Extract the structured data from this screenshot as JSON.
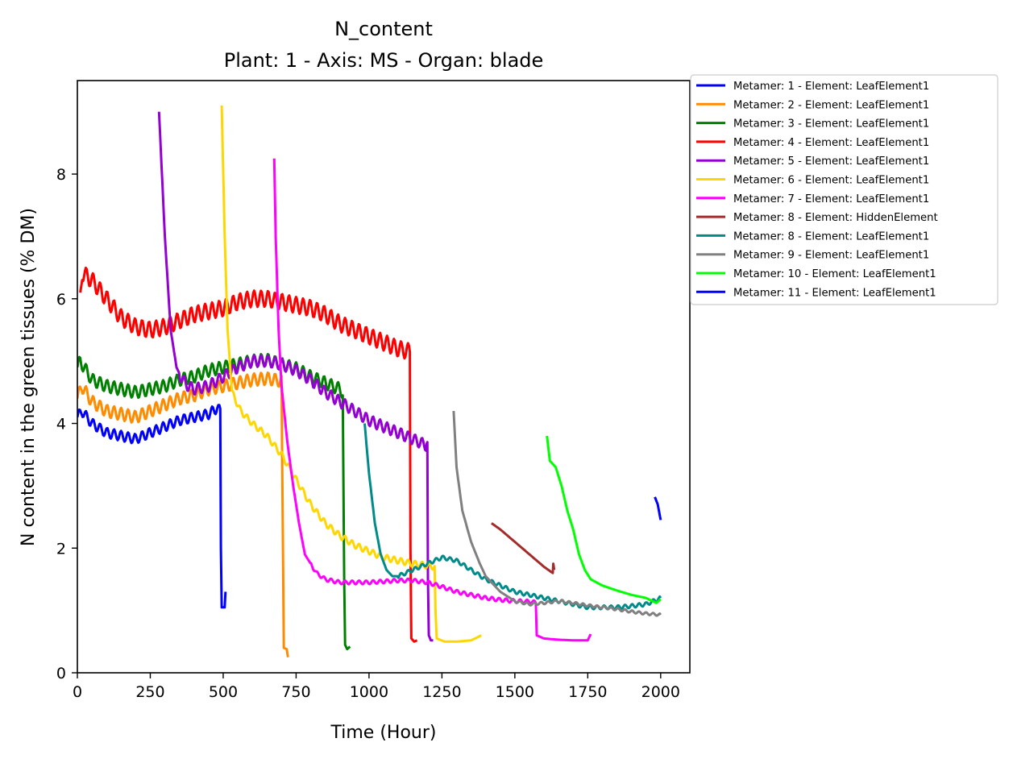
{
  "chart_data": {
    "type": "line",
    "title": "N_content",
    "subtitle": "Plant: 1 - Axis: MS - Organ: blade",
    "xlabel": "Time (Hour)",
    "ylabel": "N content in the green tissues (% DM)",
    "xlim": [
      0,
      2100
    ],
    "ylim": [
      0,
      9.5
    ],
    "xticks": [
      0,
      250,
      500,
      750,
      1000,
      1250,
      1500,
      1750,
      2000
    ],
    "yticks": [
      0,
      2,
      4,
      6,
      8
    ],
    "grid": false,
    "legend_position": "outside top-right",
    "series": [
      {
        "name": "Metamer: 1 - Element: LeafElement1",
        "color": "#0000ff",
        "points": [
          [
            0,
            4.1
          ],
          [
            15,
            4.2
          ],
          [
            50,
            4.0
          ],
          [
            100,
            3.85
          ],
          [
            150,
            3.8
          ],
          [
            200,
            3.75
          ],
          [
            250,
            3.85
          ],
          [
            300,
            3.95
          ],
          [
            350,
            4.05
          ],
          [
            400,
            4.1
          ],
          [
            450,
            4.15
          ],
          [
            480,
            4.25
          ],
          [
            490,
            4.2
          ],
          [
            492,
            2.0
          ],
          [
            495,
            1.05
          ],
          [
            505,
            1.05
          ],
          [
            508,
            1.3
          ]
        ],
        "wiggle": 0.08,
        "wiggle_range": [
          0,
          490
        ]
      },
      {
        "name": "Metamer: 2 - Element: LeafElement1",
        "color": "#ff8c00",
        "points": [
          [
            0,
            4.4
          ],
          [
            15,
            4.6
          ],
          [
            50,
            4.35
          ],
          [
            100,
            4.2
          ],
          [
            150,
            4.15
          ],
          [
            200,
            4.1
          ],
          [
            250,
            4.2
          ],
          [
            300,
            4.3
          ],
          [
            350,
            4.4
          ],
          [
            400,
            4.45
          ],
          [
            450,
            4.55
          ],
          [
            500,
            4.6
          ],
          [
            550,
            4.65
          ],
          [
            600,
            4.7
          ],
          [
            650,
            4.72
          ],
          [
            700,
            4.68
          ],
          [
            705,
            2.0
          ],
          [
            708,
            0.4
          ],
          [
            718,
            0.38
          ],
          [
            722,
            0.25
          ]
        ],
        "wiggle": 0.1,
        "wiggle_range": [
          0,
          700
        ]
      },
      {
        "name": "Metamer: 3 - Element: LeafElement1",
        "color": "#008000",
        "points": [
          [
            0,
            4.9
          ],
          [
            10,
            5.0
          ],
          [
            50,
            4.7
          ],
          [
            100,
            4.6
          ],
          [
            150,
            4.55
          ],
          [
            200,
            4.5
          ],
          [
            250,
            4.55
          ],
          [
            300,
            4.6
          ],
          [
            350,
            4.7
          ],
          [
            400,
            4.75
          ],
          [
            450,
            4.85
          ],
          [
            500,
            4.9
          ],
          [
            550,
            4.95
          ],
          [
            600,
            5.0
          ],
          [
            650,
            5.02
          ],
          [
            700,
            4.95
          ],
          [
            750,
            4.88
          ],
          [
            800,
            4.75
          ],
          [
            850,
            4.65
          ],
          [
            900,
            4.55
          ],
          [
            910,
            4.5
          ],
          [
            915,
            1.5
          ],
          [
            918,
            0.45
          ],
          [
            925,
            0.38
          ],
          [
            935,
            0.42
          ]
        ],
        "wiggle": 0.1,
        "wiggle_range": [
          0,
          910
        ]
      },
      {
        "name": "Metamer: 4 - Element: LeafElement1",
        "color": "#ff0000",
        "points": [
          [
            10,
            6.1
          ],
          [
            20,
            6.4
          ],
          [
            50,
            6.3
          ],
          [
            100,
            6.0
          ],
          [
            150,
            5.7
          ],
          [
            200,
            5.55
          ],
          [
            250,
            5.5
          ],
          [
            300,
            5.55
          ],
          [
            350,
            5.65
          ],
          [
            400,
            5.75
          ],
          [
            450,
            5.8
          ],
          [
            500,
            5.85
          ],
          [
            550,
            5.95
          ],
          [
            600,
            6.0
          ],
          [
            650,
            6.0
          ],
          [
            700,
            5.95
          ],
          [
            750,
            5.9
          ],
          [
            800,
            5.85
          ],
          [
            850,
            5.75
          ],
          [
            900,
            5.6
          ],
          [
            950,
            5.5
          ],
          [
            1000,
            5.4
          ],
          [
            1050,
            5.3
          ],
          [
            1100,
            5.2
          ],
          [
            1140,
            5.15
          ],
          [
            1142,
            2.0
          ],
          [
            1145,
            0.55
          ],
          [
            1155,
            0.5
          ],
          [
            1165,
            0.52
          ]
        ],
        "wiggle": 0.13,
        "wiggle_range": [
          20,
          1140
        ]
      },
      {
        "name": "Metamer: 5 - Element: LeafElement1",
        "color": "#9400d3",
        "points": [
          [
            280,
            9.0
          ],
          [
            300,
            7.0
          ],
          [
            320,
            5.5
          ],
          [
            340,
            4.9
          ],
          [
            360,
            4.7
          ],
          [
            380,
            4.6
          ],
          [
            400,
            4.55
          ],
          [
            450,
            4.6
          ],
          [
            500,
            4.75
          ],
          [
            550,
            4.9
          ],
          [
            600,
            5.0
          ],
          [
            650,
            5.0
          ],
          [
            700,
            4.95
          ],
          [
            750,
            4.85
          ],
          [
            800,
            4.7
          ],
          [
            850,
            4.5
          ],
          [
            900,
            4.35
          ],
          [
            950,
            4.2
          ],
          [
            1000,
            4.05
          ],
          [
            1050,
            3.95
          ],
          [
            1100,
            3.85
          ],
          [
            1150,
            3.75
          ],
          [
            1195,
            3.65
          ],
          [
            1200,
            3.7
          ],
          [
            1202,
            1.5
          ],
          [
            1205,
            0.6
          ],
          [
            1212,
            0.52
          ],
          [
            1220,
            0.52
          ]
        ],
        "wiggle": 0.09,
        "wiggle_range": [
          350,
          1195
        ]
      },
      {
        "name": "Metamer: 6 - Element: LeafElement1",
        "color": "#ffd700",
        "points": [
          [
            495,
            9.1
          ],
          [
            505,
            7.0
          ],
          [
            515,
            5.5
          ],
          [
            530,
            4.5
          ],
          [
            560,
            4.2
          ],
          [
            600,
            4.0
          ],
          [
            650,
            3.8
          ],
          [
            700,
            3.5
          ],
          [
            750,
            3.1
          ],
          [
            800,
            2.7
          ],
          [
            850,
            2.4
          ],
          [
            900,
            2.2
          ],
          [
            950,
            2.05
          ],
          [
            1000,
            1.95
          ],
          [
            1050,
            1.85
          ],
          [
            1100,
            1.8
          ],
          [
            1150,
            1.75
          ],
          [
            1200,
            1.72
          ],
          [
            1225,
            1.7
          ],
          [
            1228,
            1.0
          ],
          [
            1232,
            0.55
          ],
          [
            1260,
            0.5
          ],
          [
            1300,
            0.5
          ],
          [
            1350,
            0.52
          ],
          [
            1385,
            0.6
          ]
        ],
        "wiggle": 0.05,
        "wiggle_range": [
          530,
          1225
        ]
      },
      {
        "name": "Metamer: 7 - Element: LeafElement1",
        "color": "#ff00ff",
        "points": [
          [
            675,
            8.25
          ],
          [
            680,
            7.0
          ],
          [
            690,
            5.5
          ],
          [
            700,
            4.6
          ],
          [
            720,
            3.7
          ],
          [
            740,
            3.0
          ],
          [
            760,
            2.4
          ],
          [
            780,
            1.9
          ],
          [
            820,
            1.6
          ],
          [
            850,
            1.5
          ],
          [
            900,
            1.45
          ],
          [
            1000,
            1.45
          ],
          [
            1100,
            1.48
          ],
          [
            1150,
            1.48
          ],
          [
            1200,
            1.45
          ],
          [
            1250,
            1.38
          ],
          [
            1300,
            1.3
          ],
          [
            1350,
            1.25
          ],
          [
            1400,
            1.2
          ],
          [
            1450,
            1.17
          ],
          [
            1500,
            1.15
          ],
          [
            1560,
            1.14
          ],
          [
            1572,
            1.12
          ],
          [
            1575,
            0.6
          ],
          [
            1600,
            0.55
          ],
          [
            1650,
            0.53
          ],
          [
            1700,
            0.52
          ],
          [
            1750,
            0.52
          ],
          [
            1760,
            0.62
          ]
        ],
        "wiggle": 0.03,
        "wiggle_range": [
          800,
          1570
        ]
      },
      {
        "name": "Metamer: 8 - Element: HiddenElement",
        "color": "#a52a2a",
        "points": [
          [
            1420,
            2.4
          ],
          [
            1450,
            2.3
          ],
          [
            1500,
            2.1
          ],
          [
            1550,
            1.9
          ],
          [
            1600,
            1.7
          ],
          [
            1630,
            1.6
          ],
          [
            1632,
            1.75
          ],
          [
            1635,
            1.65
          ]
        ],
        "wiggle": 0,
        "wiggle_range": [
          0,
          0
        ]
      },
      {
        "name": "Metamer: 8 - Element: LeafElement1",
        "color": "#008b8b",
        "points": [
          [
            985,
            4.0
          ],
          [
            1000,
            3.2
          ],
          [
            1020,
            2.4
          ],
          [
            1040,
            1.9
          ],
          [
            1060,
            1.65
          ],
          [
            1080,
            1.55
          ],
          [
            1100,
            1.55
          ],
          [
            1150,
            1.65
          ],
          [
            1200,
            1.75
          ],
          [
            1250,
            1.85
          ],
          [
            1300,
            1.8
          ],
          [
            1350,
            1.65
          ],
          [
            1400,
            1.5
          ],
          [
            1450,
            1.4
          ],
          [
            1500,
            1.3
          ],
          [
            1550,
            1.25
          ],
          [
            1600,
            1.2
          ],
          [
            1650,
            1.15
          ],
          [
            1700,
            1.1
          ],
          [
            1750,
            1.05
          ],
          [
            1800,
            1.05
          ],
          [
            1850,
            1.05
          ],
          [
            1900,
            1.07
          ],
          [
            1950,
            1.1
          ],
          [
            2000,
            1.2
          ]
        ],
        "wiggle": 0.03,
        "wiggle_range": [
          1100,
          2000
        ]
      },
      {
        "name": "Metamer: 9 - Element: LeafElement1",
        "color": "#808080",
        "points": [
          [
            1290,
            4.2
          ],
          [
            1300,
            3.3
          ],
          [
            1320,
            2.6
          ],
          [
            1350,
            2.1
          ],
          [
            1380,
            1.75
          ],
          [
            1400,
            1.55
          ],
          [
            1450,
            1.3
          ],
          [
            1500,
            1.15
          ],
          [
            1550,
            1.1
          ],
          [
            1600,
            1.12
          ],
          [
            1650,
            1.15
          ],
          [
            1700,
            1.12
          ],
          [
            1750,
            1.08
          ],
          [
            1800,
            1.05
          ],
          [
            1850,
            1.02
          ],
          [
            1900,
            0.98
          ],
          [
            1950,
            0.95
          ],
          [
            2000,
            0.93
          ]
        ],
        "wiggle": 0.02,
        "wiggle_range": [
          1500,
          2000
        ]
      },
      {
        "name": "Metamer: 10 - Element: LeafElement1",
        "color": "#00ff00",
        "points": [
          [
            1610,
            3.8
          ],
          [
            1620,
            3.4
          ],
          [
            1640,
            3.3
          ],
          [
            1660,
            3.0
          ],
          [
            1680,
            2.6
          ],
          [
            1700,
            2.3
          ],
          [
            1720,
            1.9
          ],
          [
            1740,
            1.65
          ],
          [
            1760,
            1.5
          ],
          [
            1800,
            1.4
          ],
          [
            1850,
            1.32
          ],
          [
            1900,
            1.25
          ],
          [
            1950,
            1.2
          ],
          [
            1985,
            1.12
          ],
          [
            2000,
            1.18
          ]
        ],
        "wiggle": 0,
        "wiggle_range": [
          0,
          0
        ]
      },
      {
        "name": "Metamer: 11 - Element: LeafElement1",
        "color": "#0000ff",
        "points": [
          [
            1980,
            2.82
          ],
          [
            1990,
            2.7
          ],
          [
            2000,
            2.45
          ]
        ],
        "wiggle": 0,
        "wiggle_range": [
          0,
          0
        ]
      }
    ]
  }
}
